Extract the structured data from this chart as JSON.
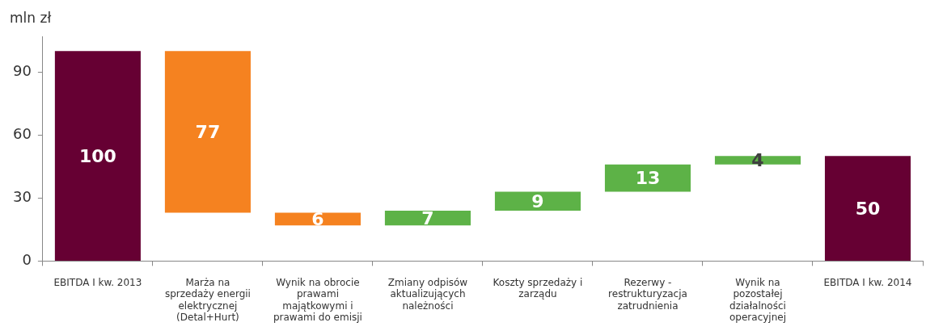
{
  "chart_data": {
    "type": "bar",
    "ylabel": "mln zł",
    "categories": [
      "EBITDA I kw. 2013",
      "Marża na sprzedaży energii elektrycznej (Detal+Hurt)",
      "Wynik na obrocie prawami majątkowymi i prawami do emisji",
      "Zmiany odpisów aktualizujących należności",
      "Koszty sprzedaży i zarządu",
      "Rezerwy - restrukturyzacja zatrudnienia",
      "Wynik na pozostałej działalności operacyjnej",
      "EBITDA I kw. 2014"
    ],
    "values": [
      100,
      -77,
      -6,
      7,
      9,
      13,
      4,
      50
    ],
    "base": [
      0,
      100,
      23,
      17,
      24,
      33,
      46,
      0
    ],
    "value_labels": [
      "100",
      "77",
      "6",
      "7",
      "9",
      "13",
      "4",
      "50"
    ],
    "colors": [
      "#660033",
      "#f58220",
      "#f58220",
      "#5db247",
      "#5db247",
      "#5db247",
      "#5db247",
      "#660033"
    ],
    "ylim": [
      0,
      107
    ],
    "yticks": [
      0,
      30,
      60,
      90
    ],
    "grid": false,
    "legend": false
  }
}
